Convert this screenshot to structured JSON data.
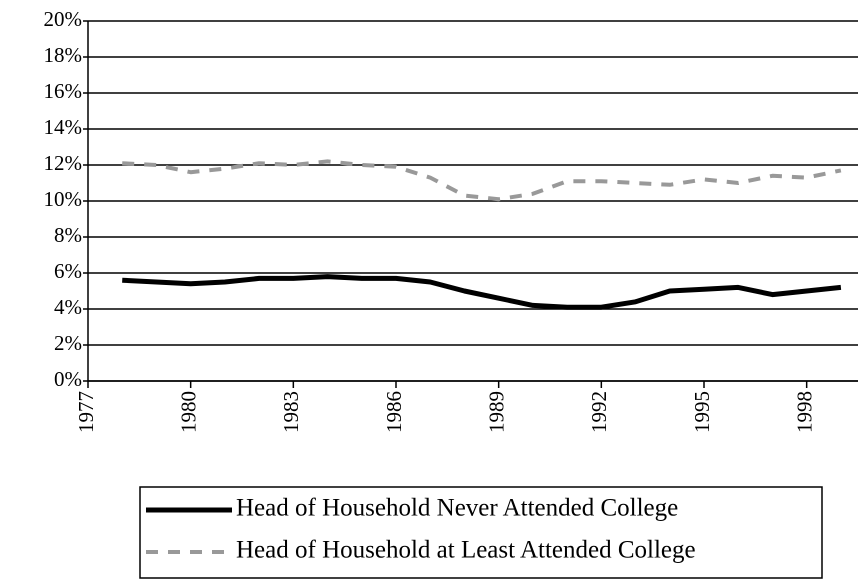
{
  "chart_data": {
    "type": "line",
    "x": [
      1978,
      1979,
      1980,
      1981,
      1982,
      1983,
      1984,
      1985,
      1986,
      1987,
      1988,
      1989,
      1990,
      1991,
      1992,
      1993,
      1994,
      1995,
      1996,
      1997,
      1998,
      1999
    ],
    "series": [
      {
        "name": "Head of Household Never Attended College",
        "color": "#000000",
        "dashed": false,
        "values": [
          5.6,
          5.5,
          5.4,
          5.5,
          5.7,
          5.7,
          5.8,
          5.7,
          5.7,
          5.5,
          5.0,
          4.6,
          4.2,
          4.1,
          4.1,
          4.4,
          5.0,
          5.1,
          5.2,
          4.8,
          5.0,
          5.2
        ]
      },
      {
        "name": "Head of Household at Least Attended College",
        "color": "#999999",
        "dashed": true,
        "values": [
          12.1,
          12.0,
          11.6,
          11.8,
          12.1,
          12.0,
          12.2,
          12.0,
          11.9,
          11.3,
          10.3,
          10.1,
          10.4,
          11.1,
          11.1,
          11.0,
          10.9,
          11.2,
          11.0,
          11.4,
          11.3,
          11.7
        ]
      }
    ],
    "xlim": [
      1977,
      1999.5
    ],
    "xticks": [
      1977,
      1980,
      1983,
      1986,
      1989,
      1992,
      1995,
      1998
    ],
    "ylim": [
      0,
      20
    ],
    "yticks": [
      {
        "value": 0,
        "label": "0%"
      },
      {
        "value": 2,
        "label": "2%"
      },
      {
        "value": 4,
        "label": "4%"
      },
      {
        "value": 6,
        "label": "6%"
      },
      {
        "value": 8,
        "label": "8%"
      },
      {
        "value": 10,
        "label": "10%"
      },
      {
        "value": 12,
        "label": "12%"
      },
      {
        "value": 14,
        "label": "14%"
      },
      {
        "value": 16,
        "label": "16%"
      },
      {
        "value": 18,
        "label": "18%"
      },
      {
        "value": 20,
        "label": "20%"
      }
    ],
    "grid": true,
    "legend": "bottom"
  }
}
